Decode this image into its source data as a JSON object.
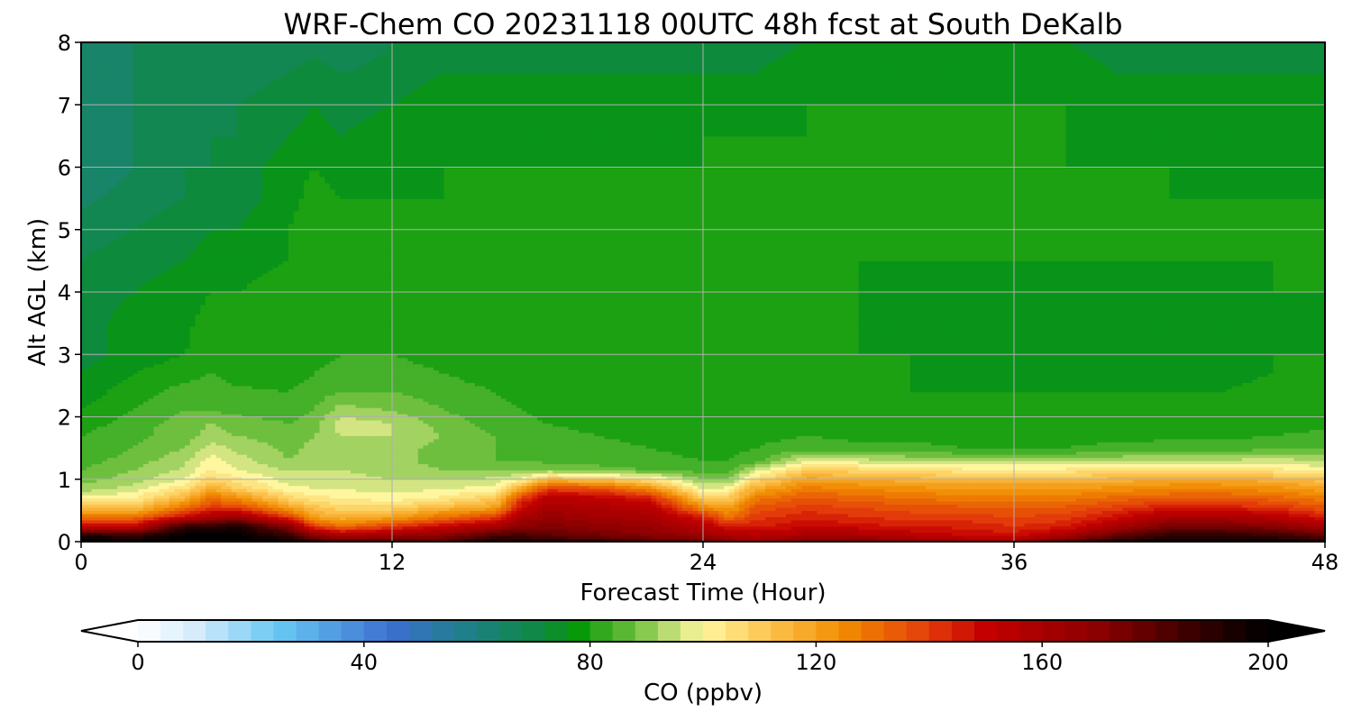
{
  "chart_data": {
    "type": "heatmap",
    "title": "WRF-Chem CO  20231118 00UTC 48h fcst at South DeKalb",
    "xlabel": "Forecast Time (Hour)",
    "ylabel": "Alt AGL (km)",
    "xlim": [
      0,
      48
    ],
    "ylim": [
      0,
      8
    ],
    "x_ticks": [
      "0",
      "12",
      "24",
      "36",
      "48"
    ],
    "y_ticks": [
      "0",
      "1",
      "2",
      "3",
      "4",
      "5",
      "6",
      "7",
      "8"
    ],
    "grid": true,
    "variable": "CO",
    "colorbar": {
      "label": "CO  (ppbv)",
      "ticks": [
        "0",
        "40",
        "80",
        "120",
        "160",
        "200"
      ],
      "range": [
        0,
        200
      ],
      "extend": "both",
      "orientation": "horizontal",
      "colors": [
        {
          "v": 0,
          "c": "#ffffff"
        },
        {
          "v": 10,
          "c": "#d6ecfb"
        },
        {
          "v": 25,
          "c": "#67c7f4"
        },
        {
          "v": 45,
          "c": "#3b6fcf"
        },
        {
          "v": 58,
          "c": "#1f7f8a"
        },
        {
          "v": 72,
          "c": "#0e8a3c"
        },
        {
          "v": 78,
          "c": "#079907"
        },
        {
          "v": 88,
          "c": "#6fbf3f"
        },
        {
          "v": 95,
          "c": "#c8e17a"
        },
        {
          "v": 100,
          "c": "#fff7a0"
        },
        {
          "v": 112,
          "c": "#fcc24c"
        },
        {
          "v": 125,
          "c": "#f18b00"
        },
        {
          "v": 140,
          "c": "#e33b0a"
        },
        {
          "v": 150,
          "c": "#c40000"
        },
        {
          "v": 170,
          "c": "#8b0000"
        },
        {
          "v": 190,
          "c": "#2a0000"
        },
        {
          "v": 200,
          "c": "#000000"
        }
      ]
    },
    "hours": [
      0,
      2,
      4,
      5,
      6,
      8,
      9,
      10,
      12,
      14,
      16,
      17,
      18,
      20,
      22,
      24,
      25,
      26,
      28,
      30,
      32,
      34,
      36,
      38,
      40,
      42,
      44,
      46,
      48
    ],
    "altitudes_km": [
      0,
      0.1,
      0.25,
      0.4,
      0.55,
      0.7,
      0.85,
      1.0,
      1.15,
      1.3,
      1.5,
      1.7,
      1.9,
      2.1,
      2.4,
      2.7,
      3.0,
      3.5,
      4.0,
      4.5,
      5.0,
      5.5,
      6.0,
      6.5,
      7.0,
      7.5,
      8.0
    ],
    "values_ppbv": [
      [
        200,
        195,
        150,
        130,
        112,
        100,
        92,
        88,
        86,
        84,
        83,
        82,
        80,
        78,
        76,
        74,
        72,
        72,
        71,
        70,
        68,
        65,
        62,
        62,
        62,
        62,
        62
      ],
      [
        200,
        190,
        150,
        130,
        112,
        102,
        96,
        92,
        90,
        88,
        86,
        85,
        84,
        82,
        80,
        78,
        76,
        76,
        74,
        72,
        70,
        68,
        66,
        66,
        66,
        66,
        66
      ],
      [
        200,
        200,
        190,
        150,
        130,
        116,
        106,
        98,
        95,
        93,
        90,
        88,
        88,
        86,
        84,
        80,
        78,
        77,
        76,
        74,
        72,
        70,
        70,
        68,
        68,
        68,
        68
      ],
      [
        200,
        200,
        190,
        160,
        140,
        130,
        118,
        108,
        102,
        100,
        96,
        92,
        90,
        86,
        85,
        82,
        80,
        80,
        78,
        76,
        74,
        72,
        70,
        70,
        68,
        68,
        68
      ],
      [
        200,
        200,
        195,
        165,
        140,
        125,
        110,
        104,
        98,
        96,
        93,
        90,
        88,
        85,
        83,
        80,
        80,
        79,
        78,
        76,
        74,
        72,
        72,
        70,
        70,
        68,
        68
      ],
      [
        200,
        190,
        170,
        140,
        120,
        108,
        100,
        96,
        94,
        90,
        89,
        88,
        86,
        84,
        82,
        80,
        79,
        82,
        80,
        78,
        78,
        76,
        76,
        74,
        72,
        70,
        68
      ],
      [
        190,
        170,
        140,
        120,
        112,
        104,
        98,
        96,
        94,
        92,
        91,
        90,
        88,
        86,
        84,
        82,
        80,
        80,
        80,
        80,
        82,
        80,
        78,
        76,
        74,
        72,
        68
      ],
      [
        185,
        160,
        130,
        115,
        108,
        102,
        98,
        96,
        94,
        92,
        93,
        94,
        96,
        92,
        86,
        84,
        82,
        81,
        80,
        80,
        78,
        78,
        76,
        74,
        72,
        70,
        66
      ],
      [
        185,
        165,
        140,
        120,
        108,
        100,
        96,
        94,
        92,
        92,
        92,
        94,
        94,
        90,
        86,
        84,
        82,
        80,
        80,
        80,
        79,
        78,
        76,
        76,
        74,
        72,
        70
      ],
      [
        185,
        170,
        150,
        130,
        115,
        103,
        98,
        94,
        90,
        88,
        88,
        90,
        88,
        86,
        84,
        82,
        80,
        80,
        79,
        78,
        78,
        78,
        78,
        76,
        76,
        74,
        72
      ],
      [
        195,
        185,
        160,
        140,
        120,
        110,
        100,
        95,
        90,
        86,
        86,
        86,
        84,
        84,
        82,
        80,
        80,
        79,
        78,
        78,
        78,
        78,
        78,
        76,
        76,
        74,
        72
      ],
      [
        195,
        185,
        170,
        160,
        150,
        140,
        120,
        100,
        90,
        86,
        85,
        84,
        84,
        82,
        80,
        80,
        79,
        79,
        78,
        78,
        78,
        78,
        78,
        76,
        76,
        74,
        72
      ],
      [
        195,
        180,
        172,
        166,
        160,
        155,
        140,
        115,
        90,
        85,
        84,
        83,
        82,
        80,
        80,
        80,
        79,
        79,
        78,
        78,
        78,
        78,
        78,
        76,
        76,
        74,
        72
      ],
      [
        190,
        175,
        168,
        162,
        158,
        152,
        138,
        112,
        88,
        84,
        83,
        82,
        81,
        80,
        80,
        79,
        79,
        78,
        78,
        78,
        78,
        78,
        78,
        76,
        76,
        74,
        72
      ],
      [
        185,
        170,
        165,
        160,
        155,
        145,
        125,
        105,
        86,
        83,
        82,
        81,
        80,
        80,
        80,
        79,
        79,
        78,
        78,
        78,
        78,
        78,
        78,
        76,
        76,
        74,
        72
      ],
      [
        180,
        165,
        155,
        145,
        125,
        110,
        98,
        90,
        84,
        82,
        81,
        80,
        80,
        80,
        79,
        79,
        78,
        78,
        78,
        78,
        78,
        78,
        78,
        78,
        76,
        74,
        72
      ],
      [
        170,
        160,
        145,
        130,
        120,
        110,
        100,
        90,
        84,
        82,
        81,
        80,
        80,
        80,
        79,
        79,
        78,
        78,
        78,
        78,
        78,
        78,
        78,
        78,
        76,
        74,
        72
      ],
      [
        165,
        155,
        145,
        140,
        135,
        128,
        118,
        106,
        96,
        84,
        82,
        81,
        80,
        80,
        79,
        79,
        78,
        78,
        78,
        78,
        78,
        78,
        78,
        78,
        76,
        74,
        72
      ],
      [
        175,
        160,
        150,
        145,
        140,
        135,
        128,
        120,
        110,
        98,
        84,
        82,
        80,
        80,
        79,
        78,
        78,
        78,
        78,
        78,
        78,
        78,
        78,
        78,
        78,
        76,
        74
      ],
      [
        175,
        160,
        148,
        142,
        138,
        132,
        126,
        118,
        108,
        96,
        83,
        81,
        80,
        79,
        78,
        78,
        78,
        78,
        78,
        78,
        78,
        78,
        78,
        78,
        78,
        76,
        74
      ],
      [
        170,
        155,
        145,
        140,
        136,
        130,
        124,
        116,
        106,
        94,
        83,
        81,
        80,
        79,
        78,
        78,
        78,
        77,
        77,
        78,
        78,
        78,
        78,
        78,
        78,
        76,
        74
      ],
      [
        165,
        150,
        145,
        140,
        135,
        128,
        122,
        114,
        104,
        92,
        82,
        81,
        80,
        79,
        78,
        77,
        77,
        76,
        77,
        78,
        78,
        78,
        78,
        78,
        78,
        76,
        74
      ],
      [
        165,
        148,
        142,
        138,
        134,
        128,
        122,
        114,
        104,
        92,
        82,
        81,
        80,
        79,
        78,
        76,
        76,
        76,
        77,
        78,
        78,
        78,
        78,
        78,
        78,
        76,
        74
      ],
      [
        185,
        160,
        145,
        140,
        135,
        128,
        122,
        114,
        104,
        92,
        82,
        81,
        80,
        79,
        78,
        77,
        76,
        76,
        77,
        78,
        78,
        78,
        78,
        78,
        78,
        76,
        74
      ],
      [
        195,
        180,
        160,
        148,
        140,
        132,
        124,
        116,
        106,
        94,
        83,
        81,
        80,
        79,
        78,
        77,
        76,
        76,
        77,
        78,
        78,
        78,
        78,
        76,
        76,
        74,
        72
      ],
      [
        200,
        190,
        175,
        160,
        146,
        134,
        126,
        118,
        106,
        95,
        84,
        81,
        80,
        79,
        78,
        77,
        76,
        76,
        77,
        78,
        78,
        78,
        78,
        76,
        76,
        74,
        72
      ],
      [
        200,
        190,
        175,
        160,
        145,
        135,
        126,
        118,
        106,
        95,
        84,
        81,
        80,
        79,
        78,
        77,
        76,
        76,
        77,
        78,
        78,
        78,
        76,
        76,
        76,
        74,
        72
      ],
      [
        200,
        188,
        170,
        155,
        142,
        132,
        124,
        116,
        104,
        96,
        85,
        82,
        80,
        80,
        79,
        78,
        78,
        77,
        78,
        78,
        78,
        78,
        76,
        76,
        76,
        74,
        72
      ],
      [
        195,
        180,
        160,
        145,
        135,
        128,
        120,
        112,
        100,
        94,
        86,
        83,
        81,
        80,
        80,
        79,
        78,
        78,
        78,
        78,
        78,
        78,
        76,
        76,
        76,
        74,
        72
      ]
    ]
  }
}
